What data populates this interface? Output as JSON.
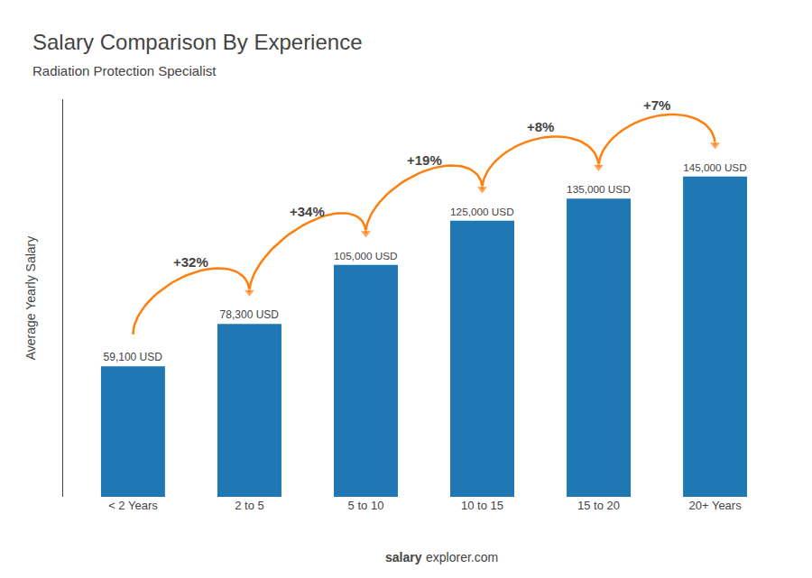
{
  "chart_data": {
    "type": "bar",
    "title": "Salary Comparison By Experience",
    "subtitle": "Radiation Protection Specialist",
    "ylabel": "Average Yearly Salary",
    "categories": [
      "< 2 Years",
      "2 to 5",
      "5 to 10",
      "10 to 15",
      "15 to 20",
      "20+ Years"
    ],
    "values": [
      59100,
      78300,
      105000,
      125000,
      135000,
      145000
    ],
    "value_labels": [
      "59,100 USD",
      "78,300 USD",
      "105,000 USD",
      "125,000 USD",
      "135,000 USD",
      "145,000 USD"
    ],
    "data_labels": true,
    "annotations": [
      "+32%",
      "+34%",
      "+19%",
      "+8%",
      "+7%"
    ],
    "footer": [
      "salary",
      "explorer.com"
    ],
    "ylim": [
      0,
      180000
    ],
    "tick_labels": "x",
    "grid": false
  }
}
